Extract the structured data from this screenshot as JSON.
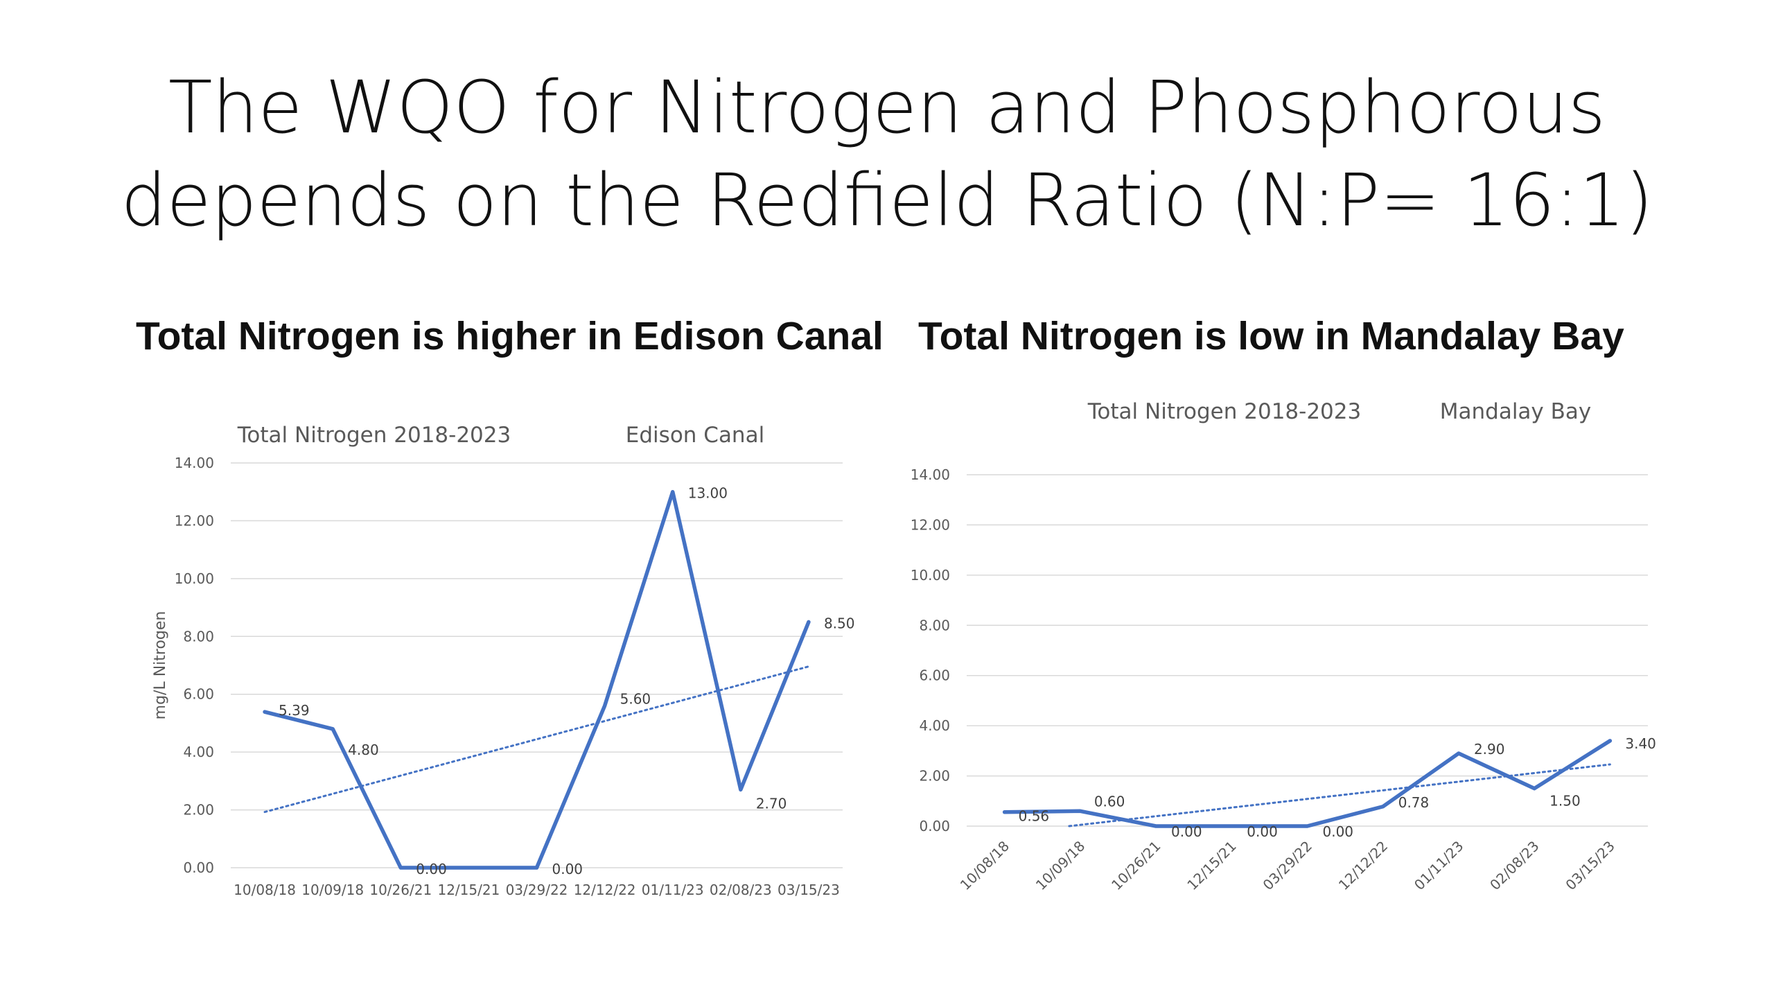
{
  "slide": {
    "title_line1": "The WQO for Nitrogen and Phosphorous",
    "title_line2": "depends on the Redfield Ratio (N:P= 16:1)",
    "heading_left": "Total Nitrogen is higher in Edison Canal",
    "heading_right": "Total Nitrogen is low in Mandalay Bay"
  },
  "colors": {
    "series": "#4472C4",
    "grid": "#d9d9d9",
    "text": "#595959"
  },
  "chart_data": [
    {
      "type": "line",
      "title": "Total Nitrogen 2018-2023",
      "subtitle": "Edison Canal",
      "ylabel": "mg/L Nitrogen",
      "xlabel": "",
      "categories": [
        "10/08/18",
        "10/09/18",
        "10/26/21",
        "12/15/21",
        "03/29/22",
        "12/12/22",
        "01/11/23",
        "02/08/23",
        "03/15/23"
      ],
      "values": [
        5.39,
        4.8,
        0.0,
        0.0,
        0.0,
        5.6,
        13.0,
        2.7,
        8.5
      ],
      "data_labels": [
        "5.39",
        "4.80",
        "0.00",
        "",
        "0.00",
        "5.60",
        "13.00",
        "2.70",
        "8.50"
      ],
      "yticks": [
        "0.00",
        "2.00",
        "4.00",
        "6.00",
        "8.00",
        "10.00",
        "12.00",
        "14.00"
      ],
      "ylim": [
        0,
        14
      ],
      "trendline": "linear, dotted",
      "grid": true,
      "legend": "none",
      "x_tick_rotation": 0
    },
    {
      "type": "line",
      "title": "Total Nitrogen  2018-2023",
      "subtitle": "Mandalay Bay",
      "ylabel": "",
      "xlabel": "",
      "categories": [
        "10/08/18",
        "10/09/18",
        "10/26/21",
        "12/15/21",
        "03/29/22",
        "12/12/22",
        "01/11/23",
        "02/08/23",
        "03/15/23"
      ],
      "values": [
        0.56,
        0.6,
        0.0,
        0.0,
        0.0,
        0.78,
        2.9,
        1.5,
        3.4
      ],
      "data_labels": [
        "0.56",
        "0.60",
        "0.00",
        "0.00",
        "0.00",
        "0.78",
        "2.90",
        "1.50",
        "3.40"
      ],
      "yticks": [
        "0.00",
        "2.00",
        "4.00",
        "6.00",
        "8.00",
        "10.00",
        "12.00",
        "14.00"
      ],
      "ylim": [
        0,
        14
      ],
      "trendline": "linear, dotted",
      "grid": true,
      "legend": "none",
      "x_tick_rotation": -45
    }
  ]
}
